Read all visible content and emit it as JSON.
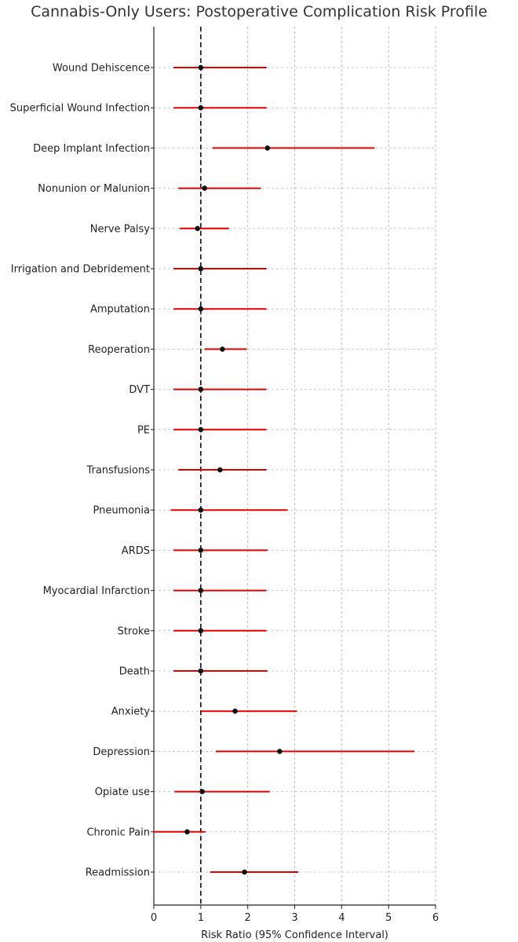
{
  "chart_data": {
    "type": "forest",
    "title": "Cannabis-Only Users: Postoperative Complication Risk Profile",
    "xlabel": "Risk Ratio (95% Confidence Interval)",
    "ylabel": "",
    "xlim": [
      0,
      6
    ],
    "xticks": [
      0,
      1,
      2,
      3,
      4,
      5,
      6
    ],
    "reference_line": 1,
    "grid": true,
    "colors": {
      "ci_line": "#e00000",
      "point": "#111111",
      "reference": "#111111",
      "grid": "#bbbbbb"
    },
    "categories": [
      "Wound Dehiscence",
      "Superficial Wound Infection",
      "Deep Implant Infection",
      "Nonunion or Malunion",
      "Nerve Palsy",
      "Irrigation and Debridement",
      "Amputation",
      "Reoperation",
      "DVT",
      "PE",
      "Transfusions",
      "Pneumonia",
      "ARDS",
      "Myocardial Infarction",
      "Stroke",
      "Death",
      "Anxiety",
      "Depression",
      "Opiate use",
      "Chronic Pain",
      "Readmission"
    ],
    "points": [
      1.0,
      1.0,
      2.42,
      1.08,
      0.93,
      1.0,
      1.0,
      1.46,
      1.0,
      1.0,
      1.41,
      1.0,
      1.0,
      1.0,
      1.0,
      1.0,
      1.73,
      2.68,
      1.03,
      0.71,
      1.93
    ],
    "ci_lower": [
      0.42,
      0.42,
      1.25,
      0.52,
      0.55,
      0.42,
      0.42,
      1.08,
      0.42,
      0.42,
      0.52,
      0.36,
      0.42,
      0.42,
      0.42,
      0.42,
      1.0,
      1.32,
      0.44,
      0.0,
      1.2
    ],
    "ci_upper": [
      2.4,
      2.4,
      4.7,
      2.28,
      1.6,
      2.4,
      2.4,
      1.98,
      2.4,
      2.4,
      2.4,
      2.85,
      2.42,
      2.4,
      2.4,
      2.42,
      3.05,
      5.55,
      2.47,
      1.1,
      3.08
    ]
  }
}
